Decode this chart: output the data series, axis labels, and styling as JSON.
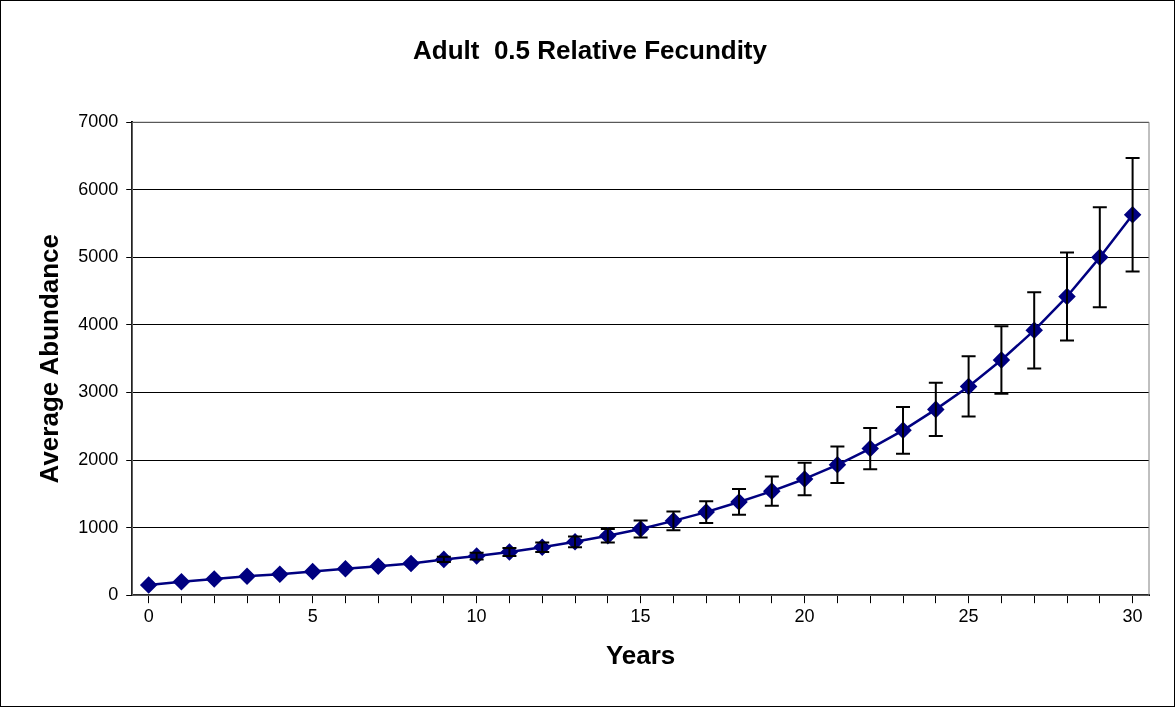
{
  "chart_data": {
    "type": "line",
    "title": "Adult  0.5 Relative Fecundity",
    "xlabel": "Years",
    "ylabel": "Average Abundance",
    "x": [
      0,
      1,
      2,
      3,
      4,
      5,
      6,
      7,
      8,
      9,
      10,
      11,
      12,
      13,
      14,
      15,
      16,
      17,
      18,
      19,
      20,
      21,
      22,
      23,
      24,
      25,
      26,
      27,
      28,
      29,
      30
    ],
    "series": [
      {
        "color": "#000080",
        "values": [
          150,
          200,
          240,
          280,
          310,
          350,
          390,
          430,
          470,
          530,
          580,
          640,
          710,
          790,
          880,
          980,
          1100,
          1230,
          1380,
          1540,
          1720,
          1930,
          2170,
          2440,
          2750,
          3090,
          3480,
          3920,
          4420,
          5000,
          5630
        ],
        "errors": [
          null,
          null,
          null,
          null,
          null,
          null,
          null,
          null,
          null,
          40,
          50,
          60,
          70,
          80,
          100,
          125,
          140,
          160,
          190,
          215,
          240,
          270,
          305,
          345,
          395,
          445,
          500,
          565,
          650,
          740,
          840
        ]
      }
    ],
    "xlim": [
      -0.5,
      30.5
    ],
    "xticks": [
      0,
      {
        "value": 1,
        "label": null
      },
      {
        "value": 2,
        "label": null
      },
      {
        "value": 3,
        "label": null
      },
      {
        "value": 4,
        "label": null
      },
      5,
      {
        "value": 6,
        "label": null
      },
      {
        "value": 7,
        "label": null
      },
      {
        "value": 8,
        "label": null
      },
      {
        "value": 9,
        "label": null
      },
      10,
      {
        "value": 11,
        "label": null
      },
      {
        "value": 12,
        "label": null
      },
      {
        "value": 13,
        "label": null
      },
      {
        "value": 14,
        "label": null
      },
      15,
      {
        "value": 16,
        "label": null
      },
      {
        "value": 17,
        "label": null
      },
      {
        "value": 18,
        "label": null
      },
      {
        "value": 19,
        "label": null
      },
      20,
      {
        "value": 21,
        "label": null
      },
      {
        "value": 22,
        "label": null
      },
      {
        "value": 23,
        "label": null
      },
      {
        "value": 24,
        "label": null
      },
      25,
      {
        "value": 26,
        "label": null
      },
      {
        "value": 27,
        "label": null
      },
      {
        "value": 28,
        "label": null
      },
      {
        "value": 29,
        "label": null
      },
      30
    ],
    "ylim": [
      0,
      7000
    ],
    "yticks": [
      0,
      1000,
      2000,
      3000,
      4000,
      5000,
      6000,
      7000
    ],
    "grid": "y",
    "legend": false,
    "marker": "diamond",
    "line_style": "solid"
  }
}
